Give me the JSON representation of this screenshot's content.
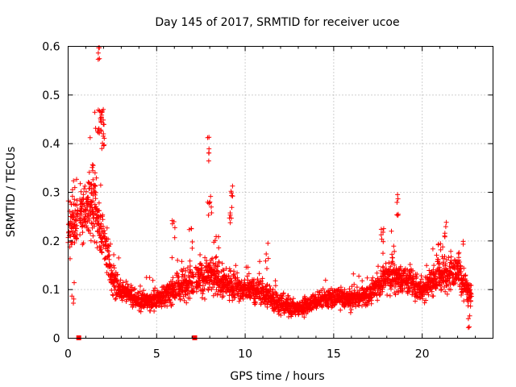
{
  "chart_data": {
    "type": "scatter",
    "title": "Day 145 of 2017, SRMTID for receiver ucoe",
    "xlabel": "GPS time / hours",
    "ylabel": "SRMTID / TECUs",
    "xlim": [
      0,
      24
    ],
    "ylim": [
      0,
      0.6
    ],
    "xticks": [
      0,
      5,
      10,
      15,
      20
    ],
    "xtick_labels": [
      "0",
      "5",
      "10",
      "15",
      "20"
    ],
    "yticks": [
      0,
      0.1,
      0.2,
      0.3,
      0.4,
      0.5,
      0.6
    ],
    "ytick_labels": [
      "0",
      "0.1",
      "0.2",
      "0.3",
      "0.4",
      "0.5",
      "0.6"
    ],
    "grid": true,
    "marker": "+",
    "color": "#ff0000",
    "gap_markers": [
      0.6,
      7.15
    ],
    "trend": [
      {
        "x": 0.0,
        "y": 0.22,
        "spread": 0.07
      },
      {
        "x": 0.5,
        "y": 0.24,
        "spread": 0.08
      },
      {
        "x": 1.0,
        "y": 0.26,
        "spread": 0.08
      },
      {
        "x": 1.5,
        "y": 0.26,
        "spread": 0.1
      },
      {
        "x": 2.0,
        "y": 0.21,
        "spread": 0.07
      },
      {
        "x": 2.5,
        "y": 0.12,
        "spread": 0.05
      },
      {
        "x": 3.0,
        "y": 0.1,
        "spread": 0.03
      },
      {
        "x": 4.0,
        "y": 0.075,
        "spread": 0.025
      },
      {
        "x": 5.0,
        "y": 0.08,
        "spread": 0.03
      },
      {
        "x": 6.0,
        "y": 0.1,
        "spread": 0.04
      },
      {
        "x": 7.0,
        "y": 0.12,
        "spread": 0.05
      },
      {
        "x": 8.0,
        "y": 0.13,
        "spread": 0.06
      },
      {
        "x": 9.0,
        "y": 0.11,
        "spread": 0.04
      },
      {
        "x": 10.0,
        "y": 0.1,
        "spread": 0.035
      },
      {
        "x": 11.0,
        "y": 0.095,
        "spread": 0.035
      },
      {
        "x": 12.0,
        "y": 0.07,
        "spread": 0.03
      },
      {
        "x": 13.0,
        "y": 0.06,
        "spread": 0.025
      },
      {
        "x": 14.0,
        "y": 0.075,
        "spread": 0.025
      },
      {
        "x": 15.0,
        "y": 0.085,
        "spread": 0.025
      },
      {
        "x": 16.0,
        "y": 0.08,
        "spread": 0.03
      },
      {
        "x": 17.0,
        "y": 0.09,
        "spread": 0.03
      },
      {
        "x": 18.0,
        "y": 0.13,
        "spread": 0.05
      },
      {
        "x": 19.0,
        "y": 0.12,
        "spread": 0.04
      },
      {
        "x": 20.0,
        "y": 0.1,
        "spread": 0.035
      },
      {
        "x": 21.0,
        "y": 0.13,
        "spread": 0.05
      },
      {
        "x": 22.0,
        "y": 0.14,
        "spread": 0.05
      },
      {
        "x": 22.8,
        "y": 0.08,
        "spread": 0.04
      }
    ],
    "peaks": [
      {
        "x": 1.4,
        "y": 0.33,
        "n": 14,
        "dx": 0.25
      },
      {
        "x": 1.75,
        "y": 0.45,
        "n": 22,
        "dx": 0.25
      },
      {
        "x": 1.72,
        "y": 0.59,
        "n": 5,
        "dx": 0.05
      },
      {
        "x": 1.95,
        "y": 0.41,
        "n": 10,
        "dx": 0.12
      },
      {
        "x": 0.5,
        "y": 0.3,
        "n": 10,
        "dx": 0.3
      },
      {
        "x": 7.9,
        "y": 0.39,
        "n": 6,
        "dx": 0.06
      },
      {
        "x": 8.0,
        "y": 0.27,
        "n": 8,
        "dx": 0.12
      },
      {
        "x": 9.25,
        "y": 0.31,
        "n": 6,
        "dx": 0.06
      },
      {
        "x": 9.2,
        "y": 0.24,
        "n": 6,
        "dx": 0.1
      },
      {
        "x": 5.95,
        "y": 0.22,
        "n": 5,
        "dx": 0.08
      },
      {
        "x": 6.95,
        "y": 0.2,
        "n": 5,
        "dx": 0.12
      },
      {
        "x": 8.4,
        "y": 0.18,
        "n": 5,
        "dx": 0.15
      },
      {
        "x": 11.25,
        "y": 0.17,
        "n": 5,
        "dx": 0.1
      },
      {
        "x": 17.75,
        "y": 0.2,
        "n": 6,
        "dx": 0.1
      },
      {
        "x": 18.6,
        "y": 0.27,
        "n": 6,
        "dx": 0.06
      },
      {
        "x": 18.4,
        "y": 0.19,
        "n": 5,
        "dx": 0.15
      },
      {
        "x": 21.3,
        "y": 0.22,
        "n": 5,
        "dx": 0.1
      },
      {
        "x": 20.9,
        "y": 0.17,
        "n": 5,
        "dx": 0.15
      },
      {
        "x": 22.2,
        "y": 0.18,
        "n": 4,
        "dx": 0.15
      },
      {
        "x": 22.65,
        "y": 0.04,
        "n": 5,
        "dx": 0.06
      },
      {
        "x": 0.3,
        "y": 0.1,
        "n": 4,
        "dx": 0.1
      }
    ]
  }
}
